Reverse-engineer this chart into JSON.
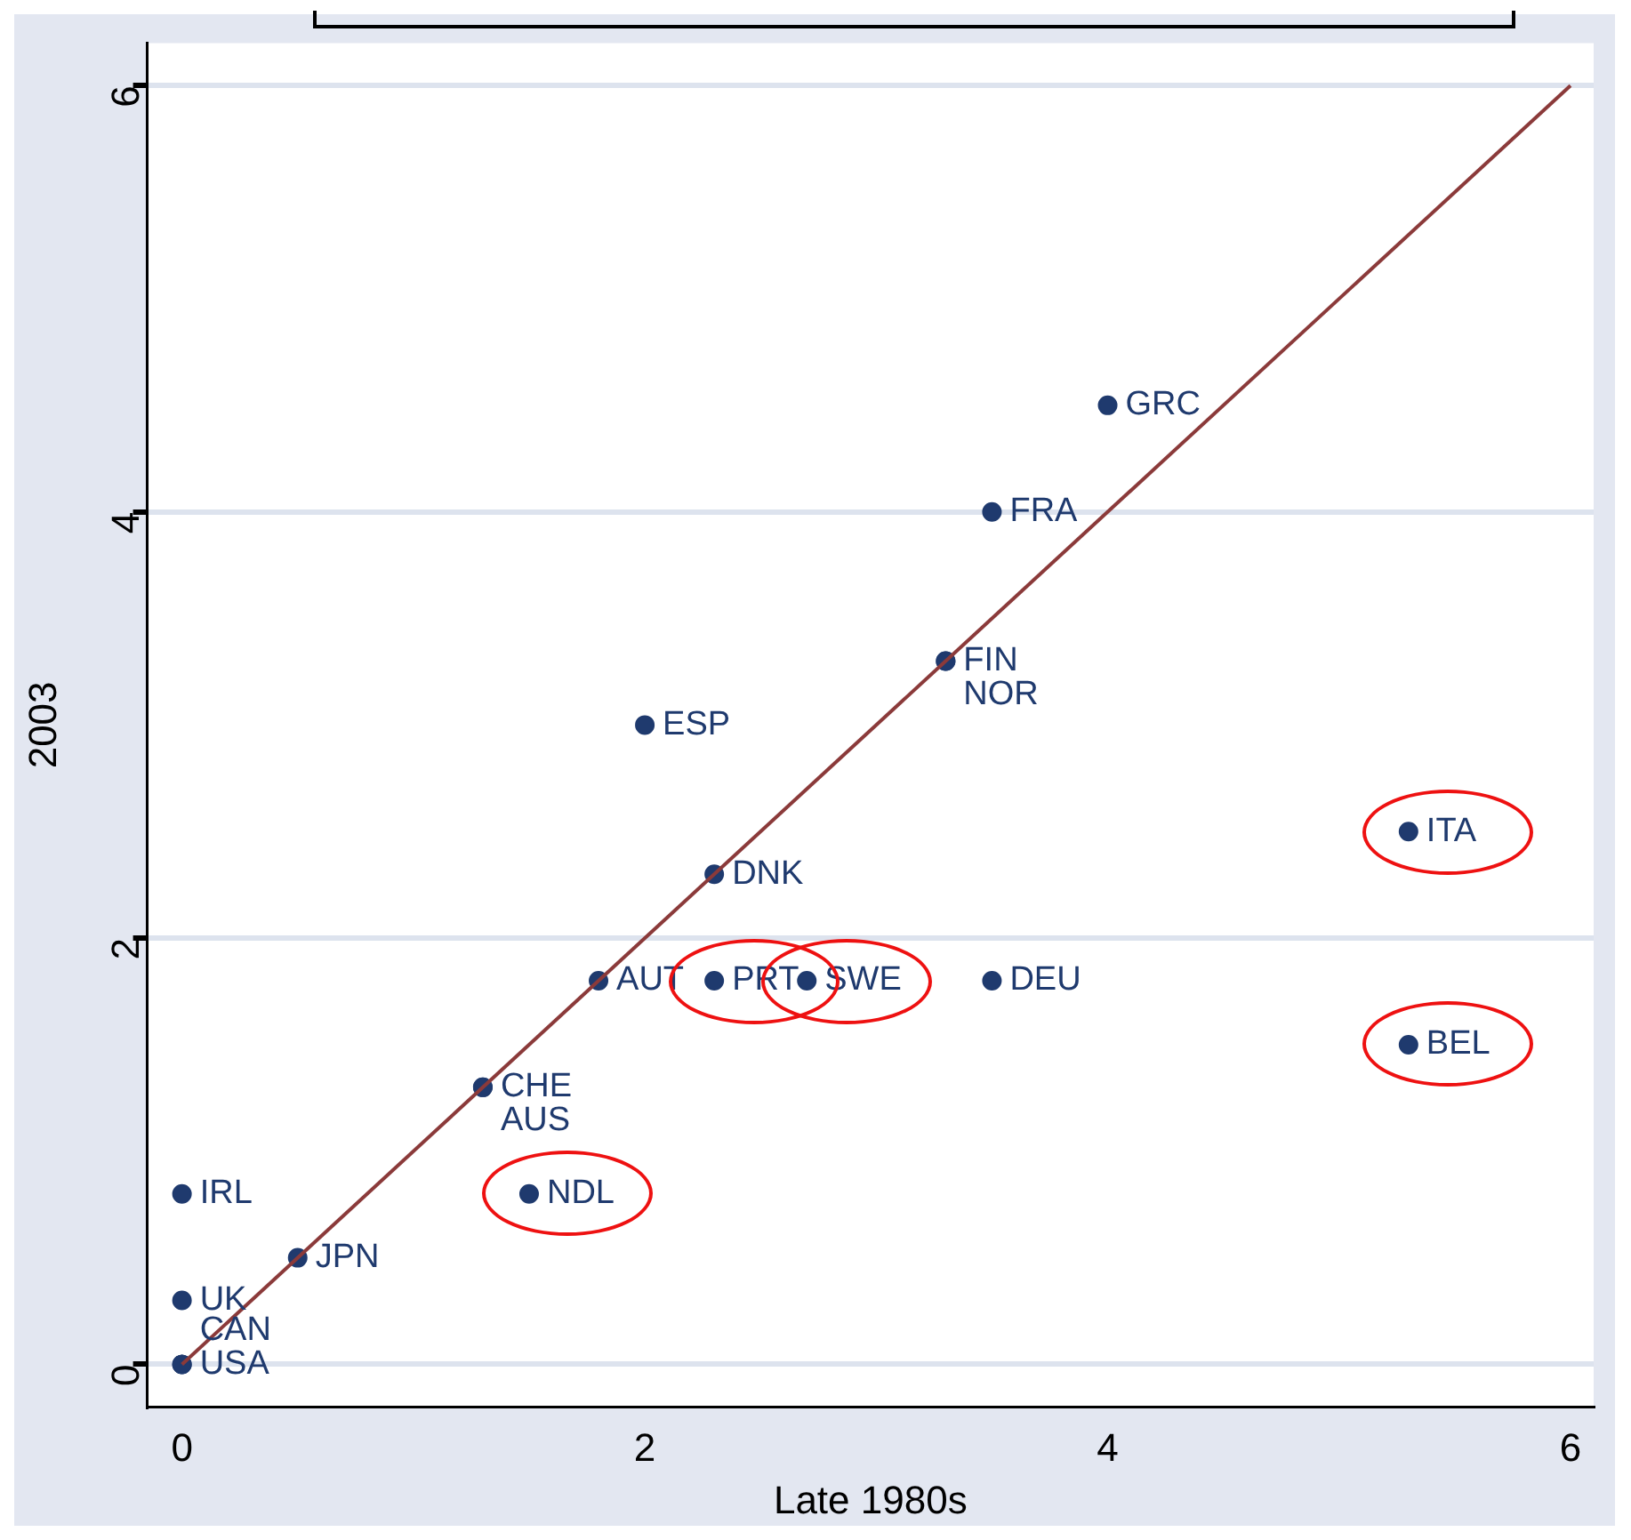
{
  "chart_data": {
    "type": "scatter",
    "xlabel": "Late 1980s",
    "ylabel": "2003",
    "xlim": [
      -0.15,
      6.1
    ],
    "ylim": [
      -0.2,
      6.2
    ],
    "xticks": [
      0,
      2,
      4,
      6
    ],
    "yticks": [
      0,
      2,
      4,
      6
    ],
    "grid": "y",
    "legend": false,
    "marker": "circle",
    "series": [
      {
        "type": "scatter",
        "color": "#1f3a6e",
        "x": [
          0,
          0,
          0,
          0,
          0.5,
          1.5,
          1.3,
          1.3,
          1.8,
          2.3,
          2.7,
          3.5,
          2.3,
          2.0,
          3.3,
          3.3,
          3.5,
          4.0,
          5.3,
          5.3
        ],
        "values": [
          0.8,
          0.3,
          0,
          0,
          0.5,
          0.8,
          1.3,
          1.3,
          1.8,
          1.8,
          1.8,
          1.8,
          2.3,
          3.0,
          3.3,
          3.3,
          4.0,
          4.5,
          2.5,
          1.5
        ],
        "value_labels": [
          "IRL",
          "UK",
          "USA",
          "CAN",
          "JPN",
          "NDL",
          "CHE",
          "AUS",
          "AUT",
          "PRT",
          "SWE",
          "DEU",
          "DNK",
          "ESP",
          "FIN",
          "NOR",
          "FRA",
          "GRC",
          "ITA",
          "BEL"
        ]
      },
      {
        "type": "line",
        "color": "#8b3a3a",
        "marker": "none",
        "line_style": "solid",
        "x": [
          0,
          6
        ],
        "values": [
          0,
          6
        ]
      }
    ]
  }
}
